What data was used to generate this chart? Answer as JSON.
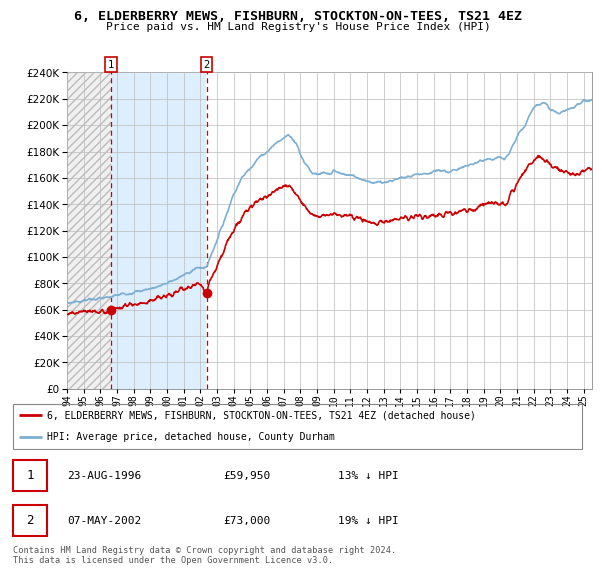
{
  "title": "6, ELDERBERRY MEWS, FISHBURN, STOCKTON-ON-TEES, TS21 4EZ",
  "subtitle": "Price paid vs. HM Land Registry's House Price Index (HPI)",
  "legend_line1": "6, ELDERBERRY MEWS, FISHBURN, STOCKTON-ON-TEES, TS21 4EZ (detached house)",
  "legend_line2": "HPI: Average price, detached house, County Durham",
  "sale1_date": "23-AUG-1996",
  "sale1_price": "£59,950",
  "sale1_hpi": "13% ↓ HPI",
  "sale2_date": "07-MAY-2002",
  "sale2_price": "£73,000",
  "sale2_hpi": "19% ↓ HPI",
  "footnote": "Contains HM Land Registry data © Crown copyright and database right 2024.\nThis data is licensed under the Open Government Licence v3.0.",
  "hpi_color": "#7bafd4",
  "price_color": "#cc0000",
  "vline_color": "#cc0000",
  "ylim": [
    0,
    240000
  ],
  "ytick_step": 20000,
  "xmin": 1994,
  "xmax": 2025.5,
  "sale1_x": 1996.646,
  "sale1_y": 59950,
  "sale2_x": 2002.37,
  "sale2_y": 73000,
  "hatch_bg_color": "#e8e8e8",
  "blue_bg_color": "#ddeeff",
  "white_bg_color": "#ffffff",
  "grid_color": "#cccccc"
}
